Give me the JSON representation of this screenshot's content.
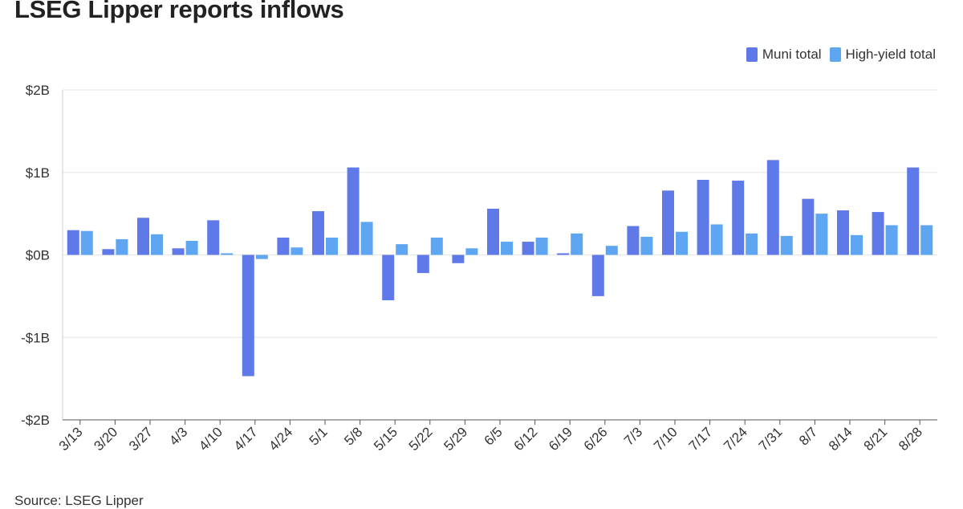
{
  "title": "LSEG Lipper reports inflows",
  "source": "Source: LSEG Lipper",
  "colors": {
    "muni": "#6079e8",
    "hy": "#5ea6f2",
    "grid": "#e6e6e6",
    "axis": "#444444"
  },
  "chart_data": {
    "type": "bar",
    "title": "LSEG Lipper reports inflows",
    "xlabel": "",
    "ylabel": "",
    "ylim": [
      -2,
      2
    ],
    "y_ticks": [
      2,
      1,
      0,
      -1,
      -2
    ],
    "y_tick_labels": [
      "$2B",
      "$1B",
      "$0B",
      "-$1B",
      "-$2B"
    ],
    "grid": true,
    "legend": "top-right",
    "categories": [
      "3/13",
      "3/20",
      "3/27",
      "4/3",
      "4/10",
      "4/17",
      "4/24",
      "5/1",
      "5/8",
      "5/15",
      "5/22",
      "5/29",
      "6/5",
      "6/12",
      "6/19",
      "6/26",
      "7/3",
      "7/10",
      "7/17",
      "7/24",
      "7/31",
      "8/7",
      "8/14",
      "8/21",
      "8/28"
    ],
    "series": [
      {
        "name": "Muni total",
        "color": "#6079e8",
        "values": [
          0.3,
          0.07,
          0.45,
          0.08,
          0.42,
          -1.47,
          0.21,
          0.53,
          1.06,
          -0.55,
          -0.22,
          -0.1,
          0.56,
          0.16,
          0.02,
          -0.5,
          0.35,
          0.78,
          0.91,
          0.9,
          1.15,
          0.68,
          0.54,
          0.52,
          1.06
        ]
      },
      {
        "name": "High-yield total",
        "color": "#5ea6f2",
        "values": [
          0.29,
          0.19,
          0.25,
          0.17,
          0.02,
          -0.05,
          0.09,
          0.21,
          0.4,
          0.13,
          0.21,
          0.08,
          0.16,
          0.21,
          0.26,
          0.11,
          0.22,
          0.28,
          0.37,
          0.26,
          0.23,
          0.5,
          0.24,
          0.36,
          0.36
        ]
      }
    ]
  }
}
